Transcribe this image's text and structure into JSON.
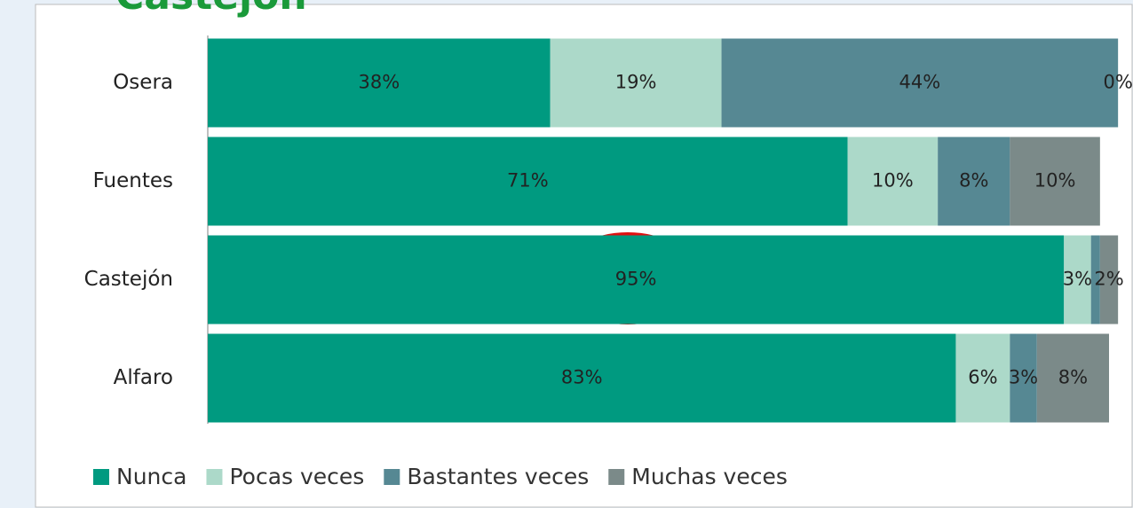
{
  "chart_data": {
    "type": "stacked-bar-horizontal",
    "title": "Castejón",
    "categories": [
      "Osera",
      "Fuentes",
      "Castejón",
      "Alfaro"
    ],
    "xlim": [
      0,
      100
    ],
    "series": [
      {
        "name": "Nunca",
        "color": "#009a80",
        "values": [
          38,
          71,
          95,
          83
        ],
        "value_labels": [
          "38%",
          "71%",
          "95%",
          "83%"
        ]
      },
      {
        "name": "Pocas veces",
        "color": "#acd9c9",
        "values": [
          19,
          10,
          3,
          6
        ],
        "value_labels": [
          "19%",
          "10%",
          "3%",
          "6%"
        ]
      },
      {
        "name": "Bastantes veces",
        "color": "#568893",
        "values": [
          44,
          8,
          1,
          3
        ],
        "value_labels": [
          "44%",
          "8%",
          null,
          "3%"
        ]
      },
      {
        "name": "Muchas veces",
        "color": "#7b8a89",
        "values": [
          0,
          10,
          2,
          8
        ],
        "value_labels": [
          "0%",
          "10%",
          "2%",
          "8%"
        ]
      }
    ],
    "legend": "bottom"
  }
}
